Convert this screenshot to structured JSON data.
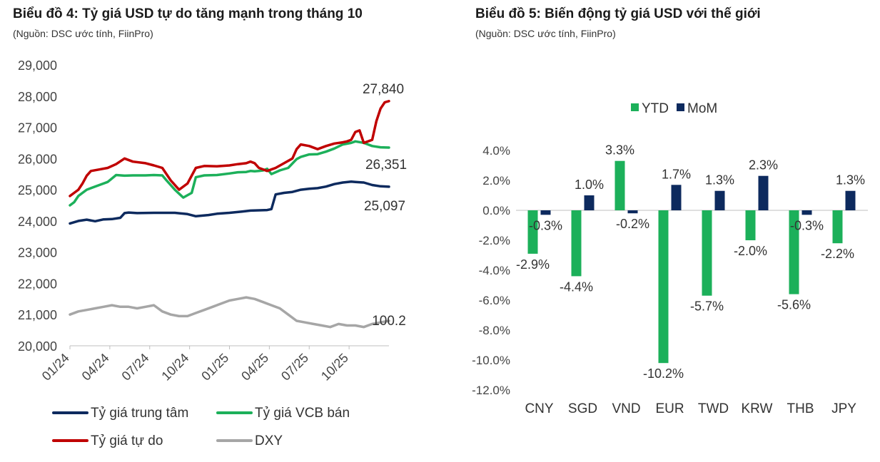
{
  "chart1": {
    "title": "Biểu đồ 4: Tỷ giá USD tự do tăng mạnh trong tháng 10",
    "source": "(Nguồn: DSC ước tính, FiinPro)",
    "chart_data": {
      "type": "line",
      "x_tick_labels": [
        "01/24",
        "04/24",
        "07/24",
        "10/24",
        "01/25",
        "04/25",
        "07/25",
        "10/25"
      ],
      "y_tick_labels": [
        "20,000",
        "21,000",
        "22,000",
        "23,000",
        "24,000",
        "25,000",
        "26,000",
        "27,000",
        "28,000",
        "29,000"
      ],
      "ylim": [
        20000,
        29000
      ],
      "legend_position": "bottom",
      "series": [
        {
          "name": "Tỷ giá trung tâm",
          "color": "#0d2a5e",
          "end_label": "25,097",
          "points": [
            [
              0,
              23920
            ],
            [
              2,
              24000
            ],
            [
              4,
              24040
            ],
            [
              6,
              23990
            ],
            [
              8,
              24050
            ],
            [
              10,
              24060
            ],
            [
              12,
              24100
            ],
            [
              13,
              24250
            ],
            [
              14,
              24270
            ],
            [
              16,
              24250
            ],
            [
              20,
              24260
            ],
            [
              25,
              24260
            ],
            [
              28,
              24220
            ],
            [
              30,
              24150
            ],
            [
              33,
              24190
            ],
            [
              35,
              24230
            ],
            [
              38,
              24260
            ],
            [
              41,
              24300
            ],
            [
              43,
              24330
            ],
            [
              45,
              24340
            ],
            [
              47,
              24350
            ],
            [
              48,
              24380
            ],
            [
              49,
              24850
            ],
            [
              51,
              24900
            ],
            [
              53,
              24930
            ],
            [
              55,
              25000
            ],
            [
              57,
              25030
            ],
            [
              59,
              25050
            ],
            [
              61,
              25100
            ],
            [
              63,
              25180
            ],
            [
              65,
              25230
            ],
            [
              67,
              25260
            ],
            [
              68,
              25250
            ],
            [
              70,
              25230
            ],
            [
              72,
              25150
            ],
            [
              74,
              25110
            ],
            [
              76,
              25097
            ]
          ]
        },
        {
          "name": "Tỷ giá VCB bán",
          "color": "#1cb05a",
          "end_label": "26,351",
          "points": [
            [
              0,
              24500
            ],
            [
              1,
              24600
            ],
            [
              2,
              24800
            ],
            [
              3,
              24900
            ],
            [
              4,
              25000
            ],
            [
              5,
              25050
            ],
            [
              7,
              25150
            ],
            [
              9,
              25250
            ],
            [
              11,
              25470
            ],
            [
              13,
              25450
            ],
            [
              15,
              25460
            ],
            [
              18,
              25460
            ],
            [
              20,
              25470
            ],
            [
              22,
              25460
            ],
            [
              23,
              25300
            ],
            [
              25,
              25000
            ],
            [
              27,
              24750
            ],
            [
              29,
              24900
            ],
            [
              30,
              25400
            ],
            [
              32,
              25460
            ],
            [
              35,
              25470
            ],
            [
              38,
              25520
            ],
            [
              40,
              25560
            ],
            [
              42,
              25570
            ],
            [
              43,
              25600
            ],
            [
              44,
              25590
            ],
            [
              45,
              25600
            ],
            [
              46,
              25620
            ],
            [
              47,
              25670
            ],
            [
              48,
              25500
            ],
            [
              50,
              25620
            ],
            [
              52,
              25700
            ],
            [
              54,
              25980
            ],
            [
              55,
              26050
            ],
            [
              57,
              26130
            ],
            [
              59,
              26140
            ],
            [
              61,
              26220
            ],
            [
              63,
              26320
            ],
            [
              65,
              26450
            ],
            [
              67,
              26500
            ],
            [
              68,
              26550
            ],
            [
              70,
              26500
            ],
            [
              72,
              26400
            ],
            [
              74,
              26360
            ],
            [
              76,
              26351
            ]
          ]
        },
        {
          "name": "Tỷ giá tự do",
          "color": "#c00000",
          "end_label": "27,840",
          "points": [
            [
              0,
              24800
            ],
            [
              1,
              24900
            ],
            [
              2,
              25000
            ],
            [
              3,
              25200
            ],
            [
              4,
              25450
            ],
            [
              5,
              25600
            ],
            [
              7,
              25650
            ],
            [
              9,
              25700
            ],
            [
              11,
              25820
            ],
            [
              13,
              26000
            ],
            [
              15,
              25900
            ],
            [
              18,
              25850
            ],
            [
              20,
              25780
            ],
            [
              22,
              25700
            ],
            [
              24,
              25300
            ],
            [
              26,
              25000
            ],
            [
              28,
              25200
            ],
            [
              30,
              25700
            ],
            [
              32,
              25760
            ],
            [
              35,
              25750
            ],
            [
              38,
              25780
            ],
            [
              40,
              25820
            ],
            [
              42,
              25850
            ],
            [
              43,
              25900
            ],
            [
              44,
              25850
            ],
            [
              45,
              25700
            ],
            [
              47,
              25600
            ],
            [
              49,
              25700
            ],
            [
              51,
              25850
            ],
            [
              53,
              26000
            ],
            [
              54,
              26300
            ],
            [
              55,
              26450
            ],
            [
              57,
              26400
            ],
            [
              59,
              26300
            ],
            [
              61,
              26400
            ],
            [
              63,
              26480
            ],
            [
              65,
              26520
            ],
            [
              66,
              26550
            ],
            [
              67,
              26600
            ],
            [
              68,
              26850
            ],
            [
              69,
              26900
            ],
            [
              70,
              26500
            ],
            [
              71,
              26550
            ],
            [
              72,
              26600
            ],
            [
              73,
              27200
            ],
            [
              74,
              27600
            ],
            [
              75,
              27800
            ],
            [
              76,
              27840
            ]
          ]
        },
        {
          "name": "DXY",
          "color": "#a6a6a6",
          "end_label": "100.2",
          "points": [
            [
              0,
              21000
            ],
            [
              2,
              21100
            ],
            [
              4,
              21150
            ],
            [
              6,
              21200
            ],
            [
              8,
              21250
            ],
            [
              10,
              21300
            ],
            [
              12,
              21250
            ],
            [
              14,
              21250
            ],
            [
              16,
              21200
            ],
            [
              18,
              21250
            ],
            [
              20,
              21300
            ],
            [
              22,
              21100
            ],
            [
              24,
              21000
            ],
            [
              26,
              20950
            ],
            [
              28,
              20950
            ],
            [
              30,
              21050
            ],
            [
              32,
              21150
            ],
            [
              34,
              21250
            ],
            [
              36,
              21350
            ],
            [
              38,
              21450
            ],
            [
              40,
              21500
            ],
            [
              42,
              21550
            ],
            [
              44,
              21500
            ],
            [
              46,
              21400
            ],
            [
              48,
              21300
            ],
            [
              50,
              21200
            ],
            [
              52,
              21000
            ],
            [
              54,
              20800
            ],
            [
              56,
              20750
            ],
            [
              58,
              20700
            ],
            [
              60,
              20650
            ],
            [
              62,
              20600
            ],
            [
              64,
              20700
            ],
            [
              66,
              20650
            ],
            [
              68,
              20650
            ],
            [
              70,
              20600
            ],
            [
              72,
              20700
            ],
            [
              74,
              20750
            ],
            [
              76,
              20800
            ]
          ]
        }
      ]
    }
  },
  "chart2": {
    "title": "Biểu đồ 5: Biến động tỷ giá USD với thế giới",
    "source": "(Nguồn: DSC ước tính, FiinPro)",
    "chart_data": {
      "type": "bar",
      "categories": [
        "CNY",
        "SGD",
        "VND",
        "EUR",
        "TWD",
        "KRW",
        "THB",
        "JPY"
      ],
      "series": [
        {
          "name": "YTD",
          "color": "#1cb05a",
          "values": [
            -2.9,
            -4.4,
            3.3,
            -10.2,
            -5.7,
            -2.0,
            -5.6,
            -2.2
          ],
          "labels": [
            "-2.9%",
            "-4.4%",
            "3.3%",
            "-10.2%",
            "-5.7%",
            "-2.0%",
            "-5.6%",
            "-2.2%"
          ]
        },
        {
          "name": "MoM",
          "color": "#0d2a5e",
          "values": [
            -0.3,
            1.0,
            -0.2,
            1.7,
            1.3,
            2.3,
            -0.3,
            1.3
          ],
          "labels": [
            "-0.3%",
            "1.0%",
            "-0.2%",
            "1.7%",
            "1.3%",
            "2.3%",
            "-0.3%",
            "1.3%"
          ]
        }
      ],
      "y_tick_labels": [
        "4.0%",
        "2.0%",
        "0.0%",
        "-2.0%",
        "-4.0%",
        "-6.0%",
        "-8.0%",
        "-10.0%",
        "-12.0%"
      ],
      "ylim": [
        -12,
        4
      ],
      "legend_position": "top"
    }
  }
}
